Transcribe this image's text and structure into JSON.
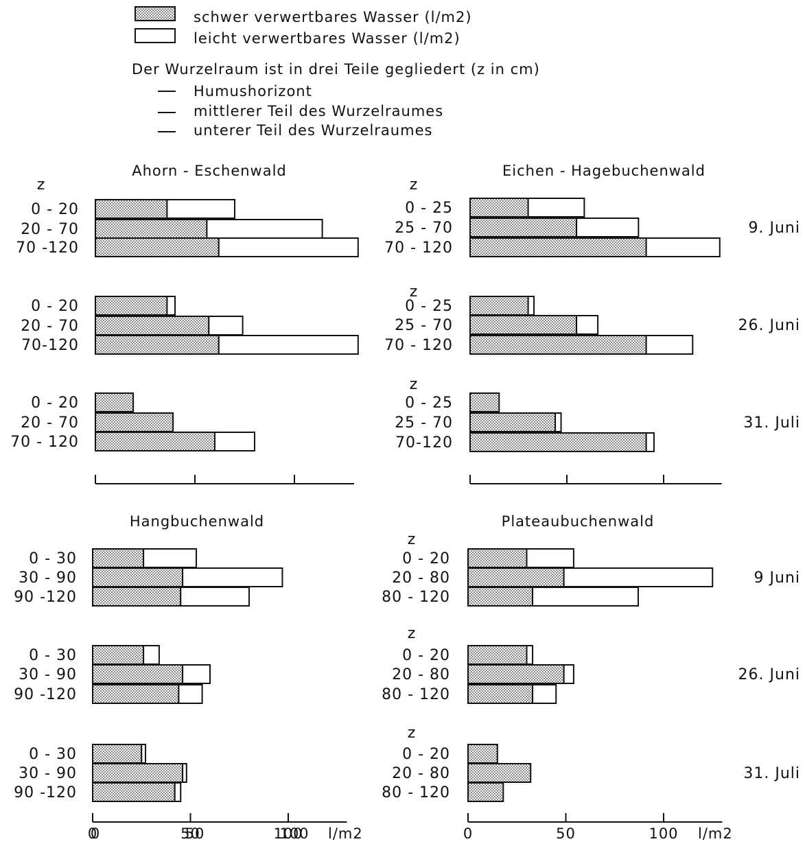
{
  "legend": {
    "hard": "schwer verwertbares Wasser (l/m2)",
    "easy": "leicht verwertbares Wasser (l/m2)",
    "root_intro": "Der Wurzelraum ist in drei Teile gegliedert (z in cm)",
    "root_parts": [
      "Humushorizont",
      "mittlerer Teil des Wurzelraumes",
      "unterer Teil des Wurzelraumes"
    ]
  },
  "colors": {
    "ink": "#111111",
    "background": "#ffffff"
  },
  "chart_data": [
    {
      "type": "bar",
      "orientation": "horizontal",
      "stacked": true,
      "title": "Ahorn - Eschenwald",
      "units": "l/m2",
      "xlim": [
        0,
        130
      ],
      "xticks": [
        "0",
        "50",
        "100"
      ],
      "groups": [
        {
          "z_label": "z",
          "date": "9. Juni",
          "categories": [
            "0 - 20",
            "20 - 70",
            "70 -120"
          ],
          "series": [
            {
              "name": "schwer verwertbares Wasser",
              "values": [
                36,
                56,
                62
              ]
            },
            {
              "name": "leicht verwertbares Wasser",
              "values": [
                34,
                58,
                70
              ]
            }
          ]
        },
        {
          "z_label": "",
          "date": "26. Juni",
          "categories": [
            "0 - 20",
            "20 - 70",
            "70-120"
          ],
          "series": [
            {
              "name": "schwer verwertbares Wasser",
              "values": [
                36,
                57,
                62
              ]
            },
            {
              "name": "leicht verwertbares Wasser",
              "values": [
                4,
                17,
                70
              ]
            }
          ]
        },
        {
          "z_label": "",
          "date": "31. Juli",
          "categories": [
            "0 - 20",
            "20 - 70",
            "70 - 120"
          ],
          "series": [
            {
              "name": "schwer verwertbares Wasser",
              "values": [
                19,
                39,
                60
              ]
            },
            {
              "name": "leicht verwertbares Wasser",
              "values": [
                0,
                0,
                20
              ]
            }
          ]
        }
      ]
    },
    {
      "type": "bar",
      "orientation": "horizontal",
      "stacked": true,
      "title": "Eichen - Hagebuchenwald",
      "units": "l/m2",
      "xlim": [
        0,
        130
      ],
      "xticks": [],
      "groups": [
        {
          "z_label": "z",
          "date": "9. Juni",
          "categories": [
            "0 - 25",
            "25 - 70",
            "70 - 120"
          ],
          "series": [
            {
              "name": "schwer verwertbares Wasser",
              "values": [
                30,
                55,
                91
              ]
            },
            {
              "name": "leicht verwertbares Wasser",
              "values": [
                29,
                32,
                38
              ]
            }
          ]
        },
        {
          "z_label": "z",
          "date": "26. Juni",
          "categories": [
            "0 - 25",
            "25 - 70",
            "70 - 120"
          ],
          "series": [
            {
              "name": "schwer verwertbares Wasser",
              "values": [
                30,
                55,
                91
              ]
            },
            {
              "name": "leicht verwertbares Wasser",
              "values": [
                3,
                11,
                24
              ]
            }
          ]
        },
        {
          "z_label": "z",
          "date": "31. Juli",
          "categories": [
            "0 - 25",
            "25 - 70",
            "70-120"
          ],
          "series": [
            {
              "name": "schwer verwertbares Wasser",
              "values": [
                15,
                44,
                91
              ]
            },
            {
              "name": "leicht verwertbares Wasser",
              "values": [
                0,
                3,
                4
              ]
            }
          ]
        }
      ]
    },
    {
      "type": "bar",
      "orientation": "horizontal",
      "stacked": true,
      "title": "Hangbuchenwald",
      "units": "l/m2",
      "xlim": [
        0,
        130
      ],
      "xticks": [
        "0",
        "50",
        "100"
      ],
      "xunit_label": "l/m2",
      "groups": [
        {
          "z_label": "",
          "date": "9 Juni",
          "categories": [
            "0 - 30",
            "30 - 90",
            "90 -120"
          ],
          "series": [
            {
              "name": "schwer verwertbares Wasser",
              "values": [
                26,
                46,
                45
              ]
            },
            {
              "name": "leicht verwertbares Wasser",
              "values": [
                27,
                51,
                35
              ]
            }
          ]
        },
        {
          "z_label": "",
          "date": "26. Juni",
          "categories": [
            "0 - 30",
            "30 - 90",
            "90 -120"
          ],
          "series": [
            {
              "name": "schwer verwertbares Wasser",
              "values": [
                26,
                46,
                44
              ]
            },
            {
              "name": "leicht verwertbares Wasser",
              "values": [
                8,
                14,
                12
              ]
            }
          ]
        },
        {
          "z_label": "",
          "date": "31. Juli",
          "categories": [
            "0 - 30",
            "30 - 90",
            "90 -120"
          ],
          "series": [
            {
              "name": "schwer verwertbares Wasser",
              "values": [
                25,
                46,
                42
              ]
            },
            {
              "name": "leicht verwertbares Wasser",
              "values": [
                2,
                2,
                3
              ]
            }
          ]
        }
      ]
    },
    {
      "type": "bar",
      "orientation": "horizontal",
      "stacked": true,
      "title": "Plateaubuchenwald",
      "units": "l/m2",
      "xlim": [
        0,
        130
      ],
      "xticks": [
        "0",
        "50",
        "100"
      ],
      "xunit_label": "l/m2",
      "groups": [
        {
          "z_label": "z",
          "date": "9 Juni",
          "categories": [
            "0 - 20",
            "20 - 80",
            "80 - 120"
          ],
          "series": [
            {
              "name": "schwer verwertbares Wasser",
              "values": [
                30,
                49,
                33
              ]
            },
            {
              "name": "leicht verwertbares Wasser",
              "values": [
                24,
                76,
                54
              ]
            }
          ]
        },
        {
          "z_label": "z",
          "date": "26. Juni",
          "categories": [
            "0 - 20",
            "20 - 80",
            "80 - 120"
          ],
          "series": [
            {
              "name": "schwer verwertbares Wasser",
              "values": [
                30,
                49,
                33
              ]
            },
            {
              "name": "leicht verwertbares Wasser",
              "values": [
                3,
                5,
                12
              ]
            }
          ]
        },
        {
          "z_label": "z",
          "date": "31. Juli",
          "categories": [
            "0 - 20",
            "20 - 80",
            "80 - 120"
          ],
          "series": [
            {
              "name": "schwer verwertbares Wasser",
              "values": [
                15,
                32,
                18
              ]
            },
            {
              "name": "leicht verwertbares Wasser",
              "values": [
                0,
                0,
                0
              ]
            }
          ]
        }
      ]
    }
  ]
}
